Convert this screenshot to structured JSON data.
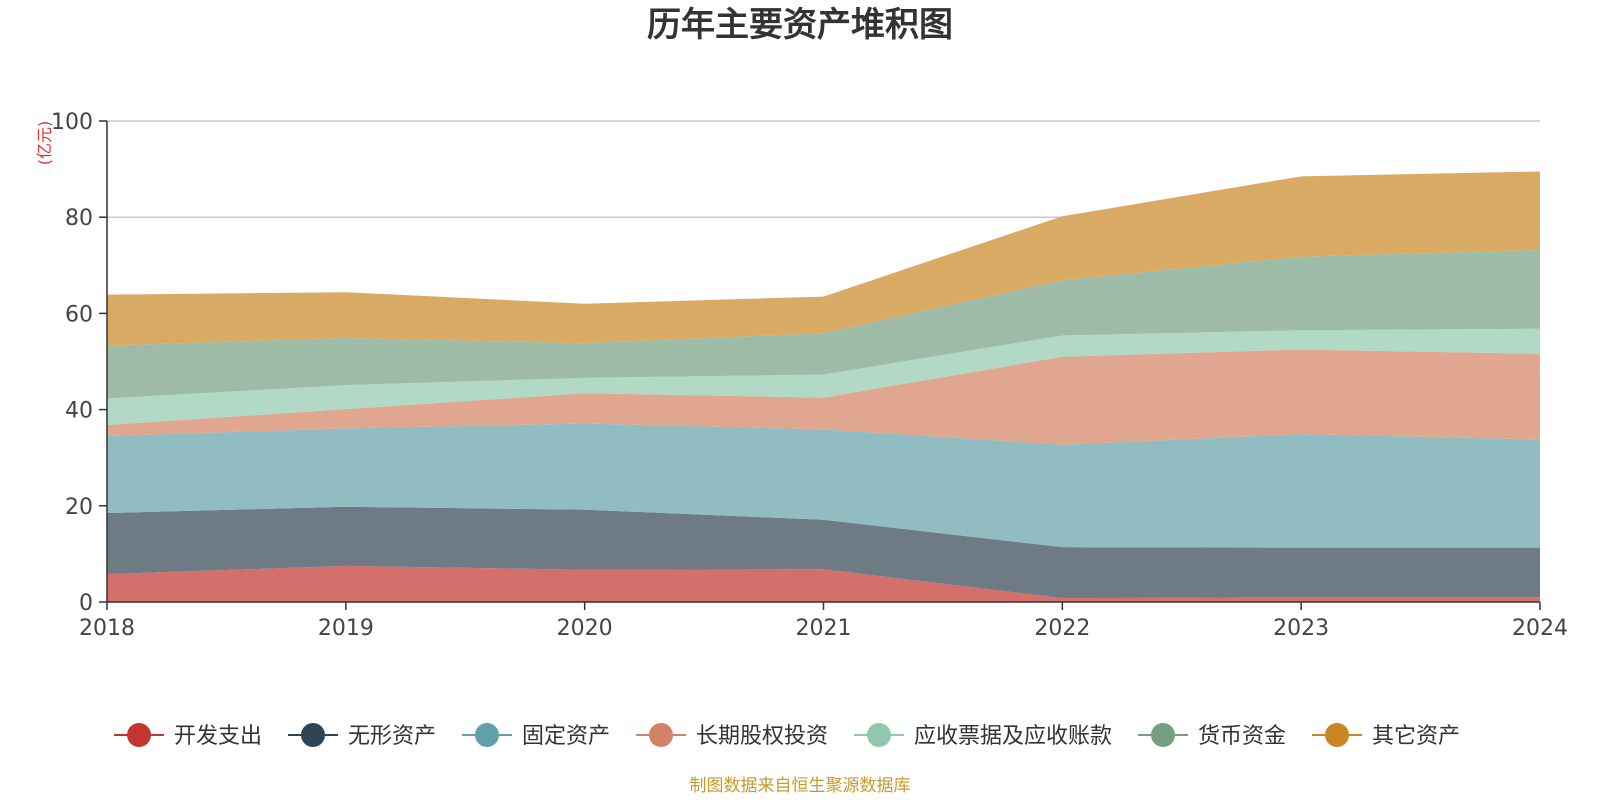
{
  "chart_data": {
    "type": "area",
    "stacked": true,
    "title": "历年主要资产堆积图",
    "unit_label": "(亿元)",
    "xlabel": "",
    "ylabel": "(亿元)",
    "x": [
      "2018",
      "2019",
      "2020",
      "2021",
      "2022",
      "2023",
      "2024"
    ],
    "ylim": [
      0,
      100
    ],
    "yticks": [
      0,
      20,
      40,
      60,
      80,
      100
    ],
    "grid": true,
    "legend_position": "bottom",
    "series": [
      {
        "name": "开发支出",
        "color": "#c23531",
        "fill": "#d46f6c",
        "values": [
          5.8,
          7.5,
          6.7,
          6.8,
          0.8,
          1.0,
          1.0
        ]
      },
      {
        "name": "无形资产",
        "color": "#2f4554",
        "fill": "#6e7b85",
        "values": [
          12.7,
          12.3,
          12.5,
          10.3,
          10.6,
          10.3,
          10.3
        ]
      },
      {
        "name": "固定资产",
        "color": "#61a0a8",
        "fill": "#90bcc2",
        "values": [
          16.0,
          16.3,
          17.9,
          18.8,
          21.3,
          23.6,
          22.5
        ]
      },
      {
        "name": "长期股权投资",
        "color": "#d48265",
        "fill": "#e0a690",
        "values": [
          2.3,
          4.0,
          6.3,
          6.6,
          18.3,
          17.6,
          17.8
        ]
      },
      {
        "name": "应收票据及应收账款",
        "color": "#91c7ae",
        "fill": "#b2d8c6",
        "values": [
          5.5,
          5.0,
          3.2,
          4.8,
          4.4,
          4.0,
          5.2
        ]
      },
      {
        "name": "货币资金",
        "color": "#749f83",
        "fill": "#9ebba8",
        "values": [
          11.0,
          9.8,
          7.2,
          8.6,
          11.5,
          15.3,
          16.4
        ]
      },
      {
        "name": "其它资产",
        "color": "#ca8622",
        "fill": "#d9aa64",
        "values": [
          10.6,
          9.5,
          8.2,
          7.6,
          13.3,
          16.7,
          16.3
        ]
      }
    ],
    "source_note": "制图数据来自恒生聚源数据库"
  }
}
